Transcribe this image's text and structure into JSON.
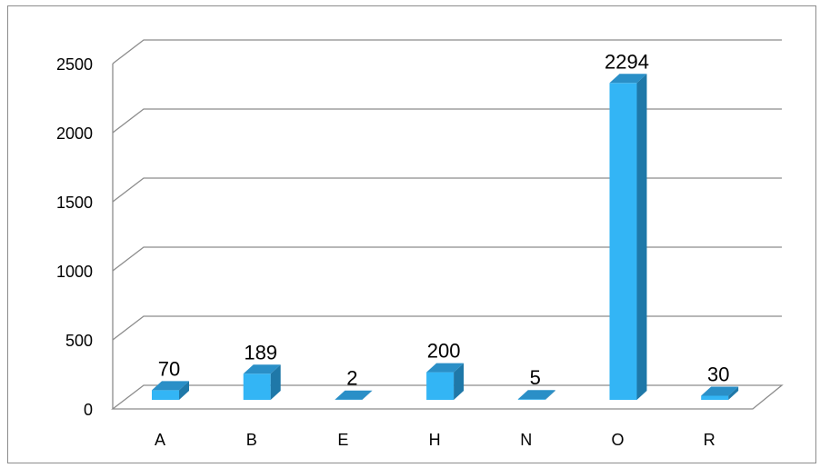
{
  "chart_data": {
    "type": "bar",
    "style": "3d-column",
    "categories": [
      "A",
      "B",
      "E",
      "H",
      "N",
      "O",
      "R"
    ],
    "values": [
      70,
      189,
      2,
      200,
      5,
      2294,
      30
    ],
    "data_labels": [
      "70",
      "189",
      "2",
      "200",
      "5",
      "2294",
      "30"
    ],
    "y_ticks": [
      "0",
      "500",
      "1000",
      "1500",
      "2000",
      "2500"
    ],
    "ylim": [
      0,
      2500
    ],
    "grid": true,
    "legend": "none",
    "colors": {
      "front": "#33b5f5",
      "top": "#2a8fc7",
      "side": "#1f78a8",
      "grid": "#8c8c8c"
    }
  }
}
